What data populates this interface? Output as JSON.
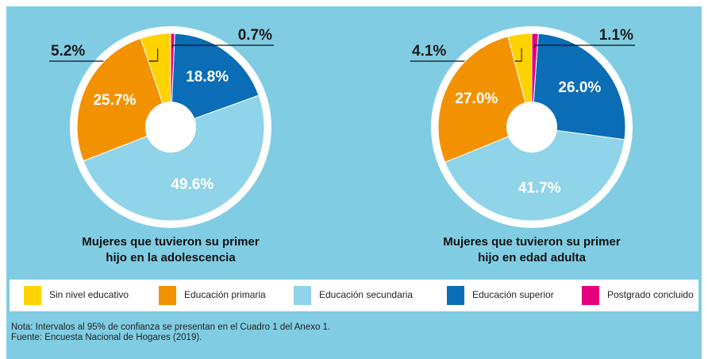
{
  "chart_data": [
    {
      "type": "pie",
      "title": [
        "Mujeres que tuvieron su primer",
        "hijo en la adolescencia"
      ],
      "categories": [
        "Sin nivel educativo",
        "Educación primaria",
        "Educación secundaria",
        "Educación superior",
        "Postgrado concluido"
      ],
      "values": [
        5.2,
        25.7,
        49.6,
        18.8,
        0.7
      ],
      "value_labels": [
        "5.2%",
        "25.7%",
        "49.6%",
        "18.8%",
        "0.7%"
      ],
      "colors": [
        "#ffd200",
        "#f39200",
        "#8fd4e8",
        "#0a6db5",
        "#e5007e"
      ]
    },
    {
      "type": "pie",
      "title": [
        "Mujeres que tuvieron su primer",
        "hijo en edad adulta"
      ],
      "categories": [
        "Sin nivel educativo",
        "Educación primaria",
        "Educación secundaria",
        "Educación superior",
        "Postgrado concluido"
      ],
      "values": [
        4.1,
        27.0,
        41.7,
        26.0,
        1.1
      ],
      "value_labels": [
        "4.1%",
        "27.0%",
        "41.7%",
        "26.0%",
        "1.1%"
      ],
      "colors": [
        "#ffd200",
        "#f39200",
        "#8fd4e8",
        "#0a6db5",
        "#e5007e"
      ]
    }
  ],
  "notes": [
    "Nota: Intervalos al 95% de confianza se presentan en el Cuadro 1 del Anexo 1.",
    "Fuente: Encuesta Nacional de Hogares (2019)."
  ]
}
